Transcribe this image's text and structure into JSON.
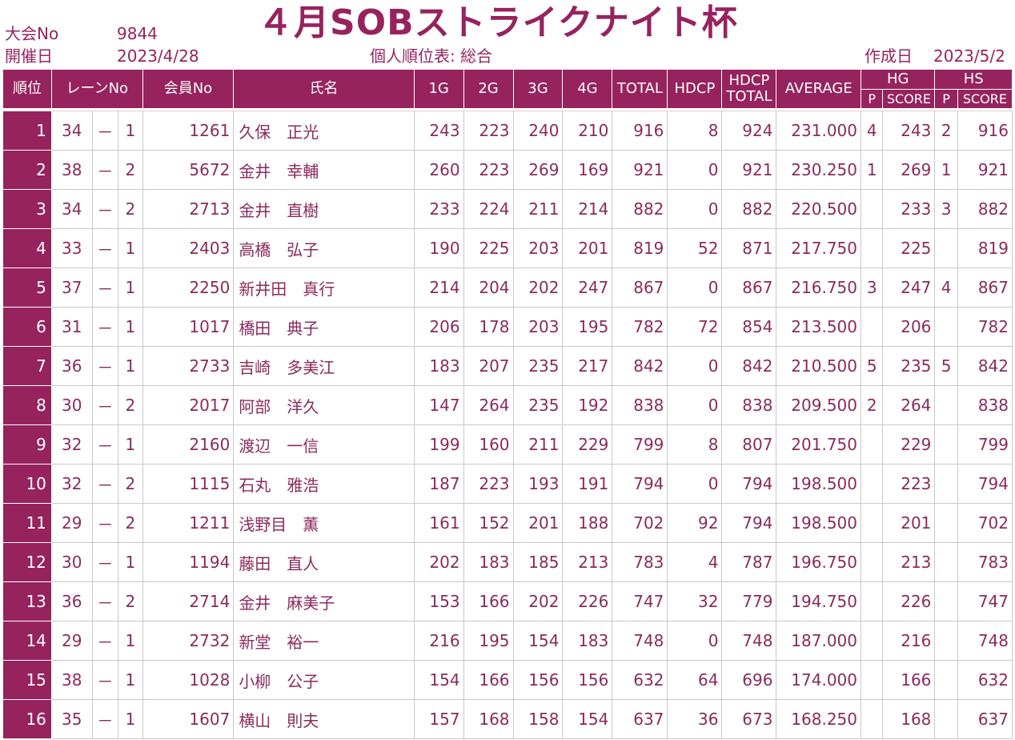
{
  "title": "４月SOBストライクナイト杯",
  "meta": {
    "tournament_no_label": "大会No",
    "tournament_no": "9844",
    "held_label": "開催日",
    "held_date": "2023/4/28",
    "sheet_name": "個人順位表: 総合",
    "created_label": "作成日",
    "created_date": "2023/5/2"
  },
  "headers": {
    "rank": "順位",
    "lane": "レーンNo",
    "member": "会員No",
    "name": "氏名",
    "g1": "1G",
    "g2": "2G",
    "g3": "3G",
    "g4": "4G",
    "total": "TOTAL",
    "hdcp": "HDCP",
    "hdcp_total_1": "HDCP",
    "hdcp_total_2": "TOTAL",
    "average": "AVERAGE",
    "hg": "HG",
    "hs": "HS",
    "p": "P",
    "score": "SCORE"
  },
  "rows": [
    {
      "rank": "1",
      "lane": "34",
      "dash": "－",
      "lane_sub": "1",
      "member": "1261",
      "name": "久保　正光",
      "g1": "243",
      "g2": "223",
      "g3": "240",
      "g4": "210",
      "total": "916",
      "hdcp": "8",
      "hdcp_total": "924",
      "average": "231.000",
      "hg_p": "4",
      "hg_score": "243",
      "hs_p": "2",
      "hs_score": "916"
    },
    {
      "rank": "2",
      "lane": "38",
      "dash": "－",
      "lane_sub": "2",
      "member": "5672",
      "name": "金井　幸輔",
      "g1": "260",
      "g2": "223",
      "g3": "269",
      "g4": "169",
      "total": "921",
      "hdcp": "0",
      "hdcp_total": "921",
      "average": "230.250",
      "hg_p": "1",
      "hg_score": "269",
      "hs_p": "1",
      "hs_score": "921"
    },
    {
      "rank": "3",
      "lane": "34",
      "dash": "－",
      "lane_sub": "2",
      "member": "2713",
      "name": "金井　直樹",
      "g1": "233",
      "g2": "224",
      "g3": "211",
      "g4": "214",
      "total": "882",
      "hdcp": "0",
      "hdcp_total": "882",
      "average": "220.500",
      "hg_p": "",
      "hg_score": "233",
      "hs_p": "3",
      "hs_score": "882"
    },
    {
      "rank": "4",
      "lane": "33",
      "dash": "－",
      "lane_sub": "1",
      "member": "2403",
      "name": "高橋　弘子",
      "g1": "190",
      "g2": "225",
      "g3": "203",
      "g4": "201",
      "total": "819",
      "hdcp": "52",
      "hdcp_total": "871",
      "average": "217.750",
      "hg_p": "",
      "hg_score": "225",
      "hs_p": "",
      "hs_score": "819"
    },
    {
      "rank": "5",
      "lane": "37",
      "dash": "－",
      "lane_sub": "1",
      "member": "2250",
      "name": "新井田　真行",
      "g1": "214",
      "g2": "204",
      "g3": "202",
      "g4": "247",
      "total": "867",
      "hdcp": "0",
      "hdcp_total": "867",
      "average": "216.750",
      "hg_p": "3",
      "hg_score": "247",
      "hs_p": "4",
      "hs_score": "867"
    },
    {
      "rank": "6",
      "lane": "31",
      "dash": "－",
      "lane_sub": "1",
      "member": "1017",
      "name": "橋田　典子",
      "g1": "206",
      "g2": "178",
      "g3": "203",
      "g4": "195",
      "total": "782",
      "hdcp": "72",
      "hdcp_total": "854",
      "average": "213.500",
      "hg_p": "",
      "hg_score": "206",
      "hs_p": "",
      "hs_score": "782"
    },
    {
      "rank": "7",
      "lane": "36",
      "dash": "－",
      "lane_sub": "1",
      "member": "2733",
      "name": "吉崎　多美江",
      "g1": "183",
      "g2": "207",
      "g3": "235",
      "g4": "217",
      "total": "842",
      "hdcp": "0",
      "hdcp_total": "842",
      "average": "210.500",
      "hg_p": "5",
      "hg_score": "235",
      "hs_p": "5",
      "hs_score": "842"
    },
    {
      "rank": "8",
      "lane": "30",
      "dash": "－",
      "lane_sub": "2",
      "member": "2017",
      "name": "阿部　洋久",
      "g1": "147",
      "g2": "264",
      "g3": "235",
      "g4": "192",
      "total": "838",
      "hdcp": "0",
      "hdcp_total": "838",
      "average": "209.500",
      "hg_p": "2",
      "hg_score": "264",
      "hs_p": "",
      "hs_score": "838"
    },
    {
      "rank": "9",
      "lane": "32",
      "dash": "－",
      "lane_sub": "1",
      "member": "2160",
      "name": "渡辺　一信",
      "g1": "199",
      "g2": "160",
      "g3": "211",
      "g4": "229",
      "total": "799",
      "hdcp": "8",
      "hdcp_total": "807",
      "average": "201.750",
      "hg_p": "",
      "hg_score": "229",
      "hs_p": "",
      "hs_score": "799"
    },
    {
      "rank": "10",
      "lane": "32",
      "dash": "－",
      "lane_sub": "2",
      "member": "1115",
      "name": "石丸　雅浩",
      "g1": "187",
      "g2": "223",
      "g3": "193",
      "g4": "191",
      "total": "794",
      "hdcp": "0",
      "hdcp_total": "794",
      "average": "198.500",
      "hg_p": "",
      "hg_score": "223",
      "hs_p": "",
      "hs_score": "794"
    },
    {
      "rank": "11",
      "lane": "29",
      "dash": "－",
      "lane_sub": "2",
      "member": "1211",
      "name": "浅野目　薫",
      "g1": "161",
      "g2": "152",
      "g3": "201",
      "g4": "188",
      "total": "702",
      "hdcp": "92",
      "hdcp_total": "794",
      "average": "198.500",
      "hg_p": "",
      "hg_score": "201",
      "hs_p": "",
      "hs_score": "702"
    },
    {
      "rank": "12",
      "lane": "30",
      "dash": "－",
      "lane_sub": "1",
      "member": "1194",
      "name": "藤田　直人",
      "g1": "202",
      "g2": "183",
      "g3": "185",
      "g4": "213",
      "total": "783",
      "hdcp": "4",
      "hdcp_total": "787",
      "average": "196.750",
      "hg_p": "",
      "hg_score": "213",
      "hs_p": "",
      "hs_score": "783"
    },
    {
      "rank": "13",
      "lane": "36",
      "dash": "－",
      "lane_sub": "2",
      "member": "2714",
      "name": "金井　麻美子",
      "g1": "153",
      "g2": "166",
      "g3": "202",
      "g4": "226",
      "total": "747",
      "hdcp": "32",
      "hdcp_total": "779",
      "average": "194.750",
      "hg_p": "",
      "hg_score": "226",
      "hs_p": "",
      "hs_score": "747"
    },
    {
      "rank": "14",
      "lane": "29",
      "dash": "－",
      "lane_sub": "1",
      "member": "2732",
      "name": "新堂　裕一",
      "g1": "216",
      "g2": "195",
      "g3": "154",
      "g4": "183",
      "total": "748",
      "hdcp": "0",
      "hdcp_total": "748",
      "average": "187.000",
      "hg_p": "",
      "hg_score": "216",
      "hs_p": "",
      "hs_score": "748"
    },
    {
      "rank": "15",
      "lane": "38",
      "dash": "－",
      "lane_sub": "1",
      "member": "1028",
      "name": "小柳　公子",
      "g1": "154",
      "g2": "166",
      "g3": "156",
      "g4": "156",
      "total": "632",
      "hdcp": "64",
      "hdcp_total": "696",
      "average": "174.000",
      "hg_p": "",
      "hg_score": "166",
      "hs_p": "",
      "hs_score": "632"
    },
    {
      "rank": "16",
      "lane": "35",
      "dash": "－",
      "lane_sub": "1",
      "member": "1607",
      "name": "横山　則夫",
      "g1": "157",
      "g2": "168",
      "g3": "158",
      "g4": "154",
      "total": "637",
      "hdcp": "36",
      "hdcp_total": "673",
      "average": "168.250",
      "hg_p": "",
      "hg_score": "168",
      "hs_p": "",
      "hs_score": "637"
    }
  ],
  "colors": {
    "accent": "#96235e",
    "text": "#8b2a5c",
    "grid": "#c9c9c9",
    "background": "#ffffff"
  }
}
